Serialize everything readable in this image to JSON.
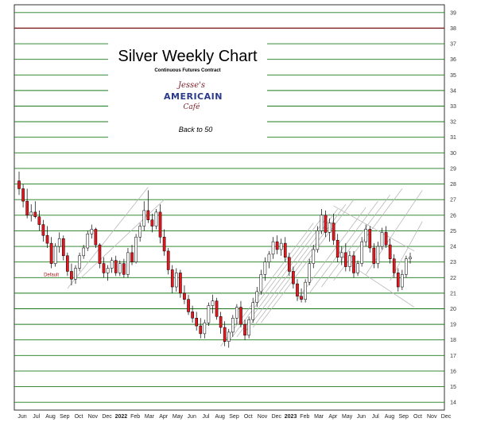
{
  "chart_data": {
    "type": "candlestick",
    "title": "Silver Weekly Chart",
    "subtitle": "Continuous Futures Contract",
    "note": "Back to 50",
    "logo": {
      "line1": "Jesse's",
      "line2": "AMERICAIN",
      "line3": "Café"
    },
    "ylim": [
      13.5,
      39.5
    ],
    "y_ticks": [
      14,
      15,
      16,
      17,
      18,
      19,
      20,
      21,
      22,
      23,
      24,
      25,
      26,
      27,
      28,
      29,
      30,
      31,
      32,
      33,
      34,
      35,
      36,
      37,
      38,
      39
    ],
    "x_labels": [
      "Jun",
      "Jul",
      "Aug",
      "Sep",
      "Oct",
      "Nov",
      "Dec",
      "2022",
      "Feb",
      "Mar",
      "Apr",
      "May",
      "Jun",
      "Jul",
      "Aug",
      "Sep",
      "Oct",
      "Nov",
      "Dec",
      "2023",
      "Feb",
      "Mar",
      "Apr",
      "May",
      "Jun",
      "Jul",
      "Aug",
      "Sep",
      "Oct",
      "Nov",
      "Dec"
    ],
    "reference_line": 38,
    "annotations": [
      {
        "text": "Default",
        "week": 8,
        "value": 22.1
      }
    ],
    "colors": {
      "up": "#ffffff",
      "down": "#e8171d",
      "grid": "#1a7a1a",
      "ref": "#7a1a1a"
    },
    "candles": [
      [
        28.2,
        28.8,
        27.3,
        27.7
      ],
      [
        27.7,
        28.0,
        26.5,
        26.9
      ],
      [
        26.9,
        27.7,
        25.8,
        26.0
      ],
      [
        26.0,
        26.7,
        25.6,
        26.2
      ],
      [
        26.2,
        26.9,
        25.8,
        25.9
      ],
      [
        25.9,
        26.3,
        25.0,
        25.4
      ],
      [
        25.4,
        25.7,
        24.3,
        24.7
      ],
      [
        24.7,
        25.3,
        23.9,
        24.2
      ],
      [
        24.2,
        24.6,
        22.6,
        22.9
      ],
      [
        22.9,
        24.2,
        22.7,
        24.0
      ],
      [
        24.0,
        24.9,
        23.6,
        24.5
      ],
      [
        24.5,
        24.7,
        23.1,
        23.4
      ],
      [
        23.4,
        23.6,
        22.1,
        22.4
      ],
      [
        22.4,
        22.9,
        21.5,
        21.9
      ],
      [
        21.9,
        22.8,
        21.6,
        22.6
      ],
      [
        22.6,
        23.6,
        22.4,
        23.4
      ],
      [
        23.4,
        24.1,
        23.2,
        23.9
      ],
      [
        23.9,
        25.0,
        23.7,
        24.8
      ],
      [
        24.8,
        25.4,
        24.5,
        25.1
      ],
      [
        25.1,
        25.2,
        23.9,
        24.1
      ],
      [
        24.1,
        24.2,
        22.6,
        22.9
      ],
      [
        22.9,
        23.3,
        22.0,
        22.3
      ],
      [
        22.3,
        22.8,
        21.8,
        22.6
      ],
      [
        22.6,
        23.3,
        22.3,
        23.1
      ],
      [
        23.1,
        23.4,
        22.1,
        22.3
      ],
      [
        22.3,
        23.1,
        22.1,
        22.9
      ],
      [
        22.9,
        23.2,
        22.0,
        22.2
      ],
      [
        22.2,
        23.9,
        22.0,
        23.6
      ],
      [
        23.6,
        24.1,
        22.8,
        23.0
      ],
      [
        23.0,
        24.8,
        22.9,
        24.6
      ],
      [
        24.6,
        25.5,
        24.3,
        25.3
      ],
      [
        25.3,
        26.9,
        25.0,
        26.3
      ],
      [
        26.3,
        27.6,
        25.5,
        25.7
      ],
      [
        25.7,
        26.1,
        24.9,
        25.3
      ],
      [
        25.3,
        26.4,
        25.1,
        26.2
      ],
      [
        26.2,
        26.7,
        24.2,
        24.6
      ],
      [
        24.6,
        25.1,
        23.4,
        23.7
      ],
      [
        23.7,
        23.9,
        22.2,
        22.5
      ],
      [
        22.5,
        22.8,
        21.0,
        21.4
      ],
      [
        21.4,
        22.6,
        21.1,
        22.3
      ],
      [
        22.3,
        22.5,
        20.7,
        21.0
      ],
      [
        21.0,
        21.5,
        20.3,
        20.6
      ],
      [
        20.6,
        20.9,
        19.6,
        19.8
      ],
      [
        19.8,
        20.2,
        19.1,
        19.4
      ],
      [
        19.4,
        19.8,
        18.6,
        18.9
      ],
      [
        18.9,
        19.4,
        18.1,
        18.4
      ],
      [
        18.4,
        19.3,
        18.1,
        19.1
      ],
      [
        19.1,
        20.4,
        18.9,
        20.2
      ],
      [
        20.2,
        20.9,
        19.7,
        20.5
      ],
      [
        20.5,
        20.7,
        19.3,
        19.5
      ],
      [
        19.5,
        19.8,
        18.4,
        18.8
      ],
      [
        18.8,
        19.2,
        17.6,
        17.9
      ],
      [
        17.9,
        18.7,
        17.5,
        18.5
      ],
      [
        18.5,
        19.6,
        18.2,
        19.4
      ],
      [
        19.4,
        20.3,
        19.0,
        20.1
      ],
      [
        20.1,
        20.5,
        18.8,
        19.0
      ],
      [
        19.0,
        19.3,
        18.0,
        18.3
      ],
      [
        18.3,
        19.5,
        18.1,
        19.3
      ],
      [
        19.3,
        20.7,
        19.1,
        20.4
      ],
      [
        20.4,
        21.4,
        20.1,
        21.1
      ],
      [
        21.1,
        22.5,
        20.9,
        22.2
      ],
      [
        22.2,
        23.3,
        21.8,
        23.0
      ],
      [
        23.0,
        23.7,
        22.6,
        23.5
      ],
      [
        23.5,
        24.6,
        23.2,
        24.3
      ],
      [
        24.3,
        24.7,
        23.5,
        23.8
      ],
      [
        23.8,
        24.5,
        23.4,
        24.2
      ],
      [
        24.2,
        24.6,
        23.0,
        23.3
      ],
      [
        23.3,
        23.6,
        22.1,
        22.4
      ],
      [
        22.4,
        22.7,
        21.3,
        21.6
      ],
      [
        21.6,
        21.9,
        20.5,
        20.8
      ],
      [
        20.8,
        21.3,
        20.4,
        20.6
      ],
      [
        20.6,
        21.9,
        20.4,
        21.7
      ],
      [
        21.7,
        23.2,
        21.5,
        22.9
      ],
      [
        22.9,
        24.1,
        22.6,
        23.8
      ],
      [
        23.8,
        25.3,
        23.6,
        25.0
      ],
      [
        25.0,
        26.4,
        24.8,
        26.0
      ],
      [
        26.0,
        26.3,
        24.6,
        24.9
      ],
      [
        24.9,
        25.8,
        24.3,
        25.5
      ],
      [
        25.5,
        26.1,
        24.1,
        24.4
      ],
      [
        24.4,
        24.8,
        23.0,
        23.3
      ],
      [
        23.3,
        24.0,
        22.8,
        23.6
      ],
      [
        23.6,
        24.2,
        22.4,
        22.7
      ],
      [
        22.7,
        23.7,
        22.4,
        23.4
      ],
      [
        23.4,
        23.7,
        22.0,
        22.3
      ],
      [
        22.3,
        23.1,
        22.1,
        22.9
      ],
      [
        22.9,
        24.6,
        22.7,
        24.3
      ],
      [
        24.3,
        25.4,
        24.0,
        25.1
      ],
      [
        25.1,
        25.3,
        23.6,
        23.9
      ],
      [
        23.9,
        24.2,
        22.6,
        22.9
      ],
      [
        22.9,
        24.3,
        22.6,
        24.0
      ],
      [
        24.0,
        25.2,
        23.8,
        24.9
      ],
      [
        24.9,
        25.3,
        23.9,
        24.1
      ],
      [
        24.1,
        24.5,
        22.9,
        23.2
      ],
      [
        23.2,
        23.5,
        22.0,
        22.3
      ],
      [
        22.3,
        22.6,
        21.1,
        21.4
      ],
      [
        21.4,
        22.5,
        21.2,
        22.2
      ],
      [
        22.2,
        23.4,
        22.0,
        23.2
      ],
      [
        23.2,
        23.6,
        22.9,
        23.3
      ]
    ]
  }
}
